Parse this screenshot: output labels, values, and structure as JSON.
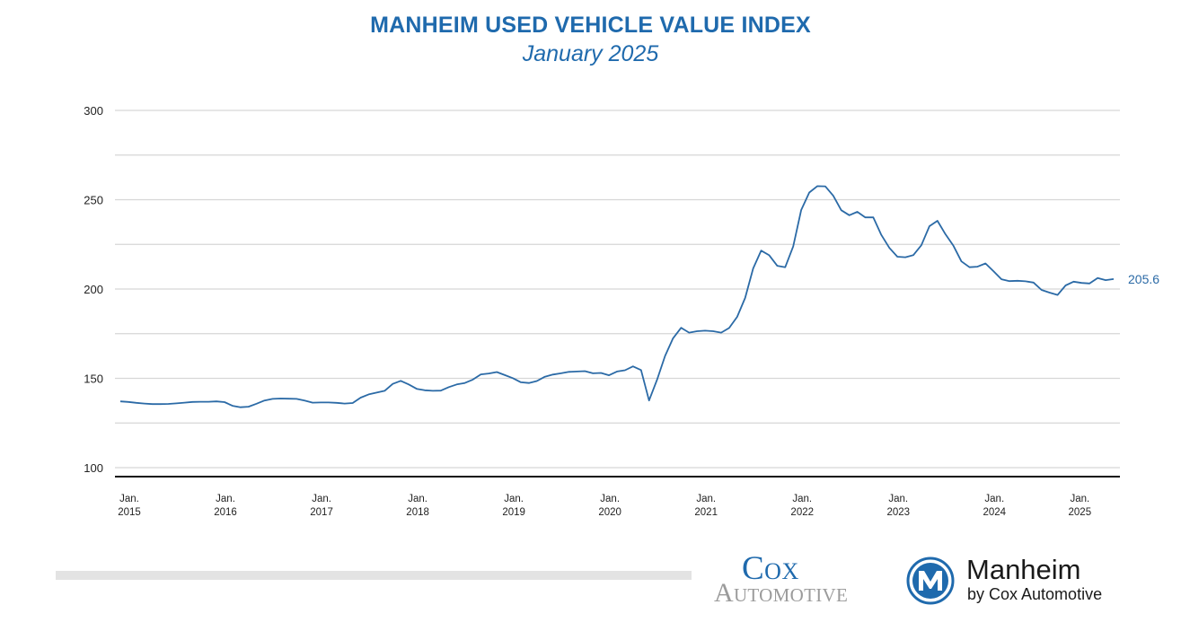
{
  "header": {
    "title": "MANHEIM USED VEHICLE VALUE INDEX",
    "subtitle": "January 2025"
  },
  "chart_data": {
    "type": "line",
    "title": "MANHEIM USED VEHICLE VALUE INDEX",
    "subtitle": "January 2025",
    "xlabel": "",
    "ylabel": "",
    "ylim": [
      95,
      300
    ],
    "yticks": [
      100,
      150,
      200,
      250,
      300
    ],
    "grid": true,
    "line_color": "#2b6aa6",
    "end_label": "205.6",
    "x_tick_labels": [
      [
        "Jan.",
        "2015"
      ],
      [
        "Jan.",
        "2016"
      ],
      [
        "Jan.",
        "2017"
      ],
      [
        "Jan.",
        "2018"
      ],
      [
        "Jan.",
        "2019"
      ],
      [
        "Jan.",
        "2020"
      ],
      [
        "Jan.",
        "2021"
      ],
      [
        "Jan.",
        "2022"
      ],
      [
        "Jan.",
        "2023"
      ],
      [
        "Jan.",
        "2024"
      ],
      [
        "Jan.",
        "2025"
      ]
    ],
    "x_start": "2015-01",
    "x_end": "2025-01",
    "series": [
      {
        "values": [
          137.1,
          136.8,
          136.3,
          135.9,
          135.6,
          135.6,
          135.7,
          136.0,
          136.4,
          136.8,
          136.9,
          136.9,
          137.1,
          136.7,
          134.6,
          133.8,
          134.1,
          135.8,
          137.6,
          138.5,
          138.7,
          138.6,
          138.5,
          137.6,
          136.4,
          136.5,
          136.5,
          136.3,
          135.9,
          136.2,
          139.2,
          141.0,
          142.0,
          143.0,
          146.9,
          148.6,
          146.6,
          144.1,
          143.3,
          143.0,
          143.1,
          145.1,
          146.6,
          147.4,
          149.3,
          152.2,
          152.7,
          153.5,
          151.8,
          150.1,
          147.8,
          147.4,
          148.5,
          150.9,
          152.1,
          152.8,
          153.6,
          153.8,
          154.0,
          152.8,
          153.0,
          151.7,
          153.8,
          154.5,
          156.7,
          154.6,
          137.6,
          149.2,
          162.5,
          172.4,
          178.3,
          175.6,
          176.4,
          176.7,
          176.4,
          175.6,
          178.2,
          184.4,
          195.0,
          211.5,
          221.5,
          218.9,
          213.0,
          212.2,
          223.8,
          244.2,
          254.0,
          257.6,
          257.5,
          252.2,
          244.1,
          241.3,
          243.2,
          240.1,
          240.1,
          230.3,
          223.0,
          218.1,
          217.8,
          219.0,
          224.5,
          235.2,
          238.2,
          230.7,
          224.2,
          215.5,
          212.2,
          212.5,
          214.3,
          210.0,
          205.5,
          204.4,
          204.6,
          204.3,
          203.6,
          199.5,
          198.0,
          196.7,
          202.0,
          204.1,
          203.4,
          203.1,
          206.2,
          205.0,
          205.6
        ]
      }
    ]
  },
  "footer": {
    "cox_word": "Cox",
    "automotive_word": "Automotive",
    "manheim_name": "Manheim",
    "manheim_sub": "by Cox Automotive",
    "brand_color": "#1f6aad",
    "gray_color": "#9b9b9b"
  }
}
